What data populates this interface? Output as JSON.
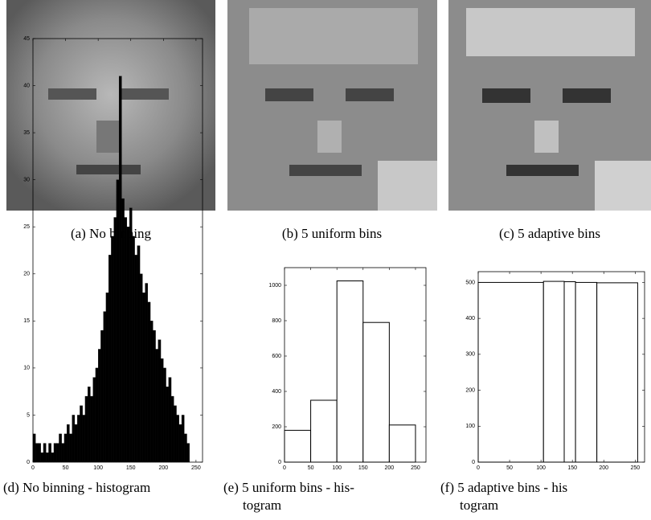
{
  "captions": [
    "(a) No binning",
    "(b) 5 uniform bins",
    "(c) 5 adaptive bins"
  ],
  "chart_data": [
    {
      "type": "histogram",
      "caption": [
        "(d) No binning - histogram"
      ],
      "color": "#000000",
      "bins": [
        0,
        4,
        8,
        12,
        16,
        20,
        24,
        28,
        32,
        36,
        40,
        44,
        48,
        52,
        56,
        60,
        64,
        68,
        72,
        76,
        80,
        84,
        88,
        92,
        96,
        100,
        104,
        108,
        112,
        116,
        120,
        124,
        128,
        132,
        136,
        140,
        144,
        148,
        152,
        156,
        160,
        164,
        168,
        172,
        176,
        180,
        184,
        188,
        192,
        196,
        200,
        204,
        208,
        212,
        216,
        220,
        224,
        228,
        232,
        236,
        240
      ],
      "values": [
        3,
        2,
        2,
        1,
        2,
        1,
        2,
        1,
        2,
        2,
        3,
        2,
        3,
        4,
        3,
        5,
        4,
        5,
        6,
        5,
        7,
        8,
        7,
        9,
        10,
        12,
        14,
        16,
        18,
        22,
        24,
        26,
        30,
        41,
        28,
        26,
        25,
        27,
        24,
        22,
        23,
        20,
        18,
        19,
        17,
        15,
        14,
        12,
        13,
        11,
        10,
        8,
        9,
        7,
        6,
        5,
        4,
        5,
        3,
        2
      ],
      "xlim": [
        0,
        260
      ],
      "ylim": [
        0,
        45
      ],
      "xticks": [
        0,
        50,
        100,
        150,
        200,
        250
      ],
      "yticks": [
        0,
        5,
        10,
        15,
        20,
        25,
        30,
        35,
        40,
        45
      ]
    },
    {
      "type": "histogram",
      "caption": [
        "(e) 5 uniform bins - his-",
        "togram"
      ],
      "color": "#ffffff",
      "bins": [
        0,
        50,
        100,
        150,
        200,
        250
      ],
      "values": [
        180,
        350,
        1025,
        790,
        210
      ],
      "xlim": [
        0,
        270
      ],
      "ylim": [
        0,
        1100
      ],
      "xticks": [
        0,
        50,
        100,
        150,
        200,
        250
      ],
      "yticks": [
        0,
        200,
        400,
        600,
        800,
        1000
      ]
    },
    {
      "type": "histogram",
      "caption": [
        "(f) 5 adaptive bins - his",
        "togram"
      ],
      "color": "#ffffff",
      "bins": [
        0,
        104,
        137,
        155,
        189,
        254
      ],
      "values": [
        500,
        503,
        502,
        500,
        499
      ],
      "xlim": [
        0,
        265
      ],
      "ylim": [
        0,
        530
      ],
      "xticks": [
        0,
        50,
        100,
        150,
        200,
        250
      ],
      "yticks": [
        0,
        100,
        200,
        300,
        400,
        500
      ]
    }
  ]
}
